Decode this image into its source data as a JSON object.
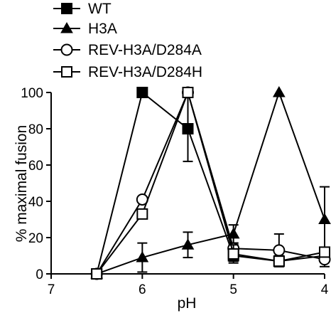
{
  "chart_data": {
    "type": "line",
    "xlabel": "pH",
    "ylabel": "% maximal fusion",
    "x_reversed": true,
    "xlim": [
      7,
      4
    ],
    "ylim": [
      0,
      100
    ],
    "xticks": [
      7,
      6,
      5,
      4
    ],
    "yticks": [
      0,
      20,
      40,
      60,
      80,
      100
    ],
    "legend_position": "top-left",
    "grid": false,
    "series": [
      {
        "name": "WT",
        "marker": "filled-square",
        "x": [
          6.5,
          6.0,
          5.5,
          5.0,
          4.5,
          4.0
        ],
        "y": [
          0,
          100,
          80,
          10,
          7,
          10
        ],
        "err": [
          0,
          0,
          18,
          3,
          2,
          3
        ]
      },
      {
        "name": "H3A",
        "marker": "filled-triangle",
        "x": [
          6.5,
          6.0,
          5.5,
          5.0,
          4.5,
          4.0
        ],
        "y": [
          0,
          9,
          16,
          22,
          100,
          30
        ],
        "err": [
          0,
          8,
          7,
          5,
          0,
          18
        ]
      },
      {
        "name": "REV-H3A/D284A",
        "marker": "open-circle",
        "x": [
          6.5,
          6.0,
          5.5,
          5.0,
          4.5,
          4.0
        ],
        "y": [
          0,
          41,
          100,
          14,
          13,
          8
        ],
        "err": [
          0,
          0,
          0,
          3,
          9,
          4
        ]
      },
      {
        "name": "REV-H3A/D284H",
        "marker": "open-square",
        "x": [
          6.5,
          6.0,
          5.5,
          5.0,
          4.5,
          4.0
        ],
        "y": [
          0,
          33,
          100,
          11,
          7,
          12
        ],
        "err": [
          0,
          0,
          0,
          5,
          3,
          2
        ]
      }
    ]
  }
}
